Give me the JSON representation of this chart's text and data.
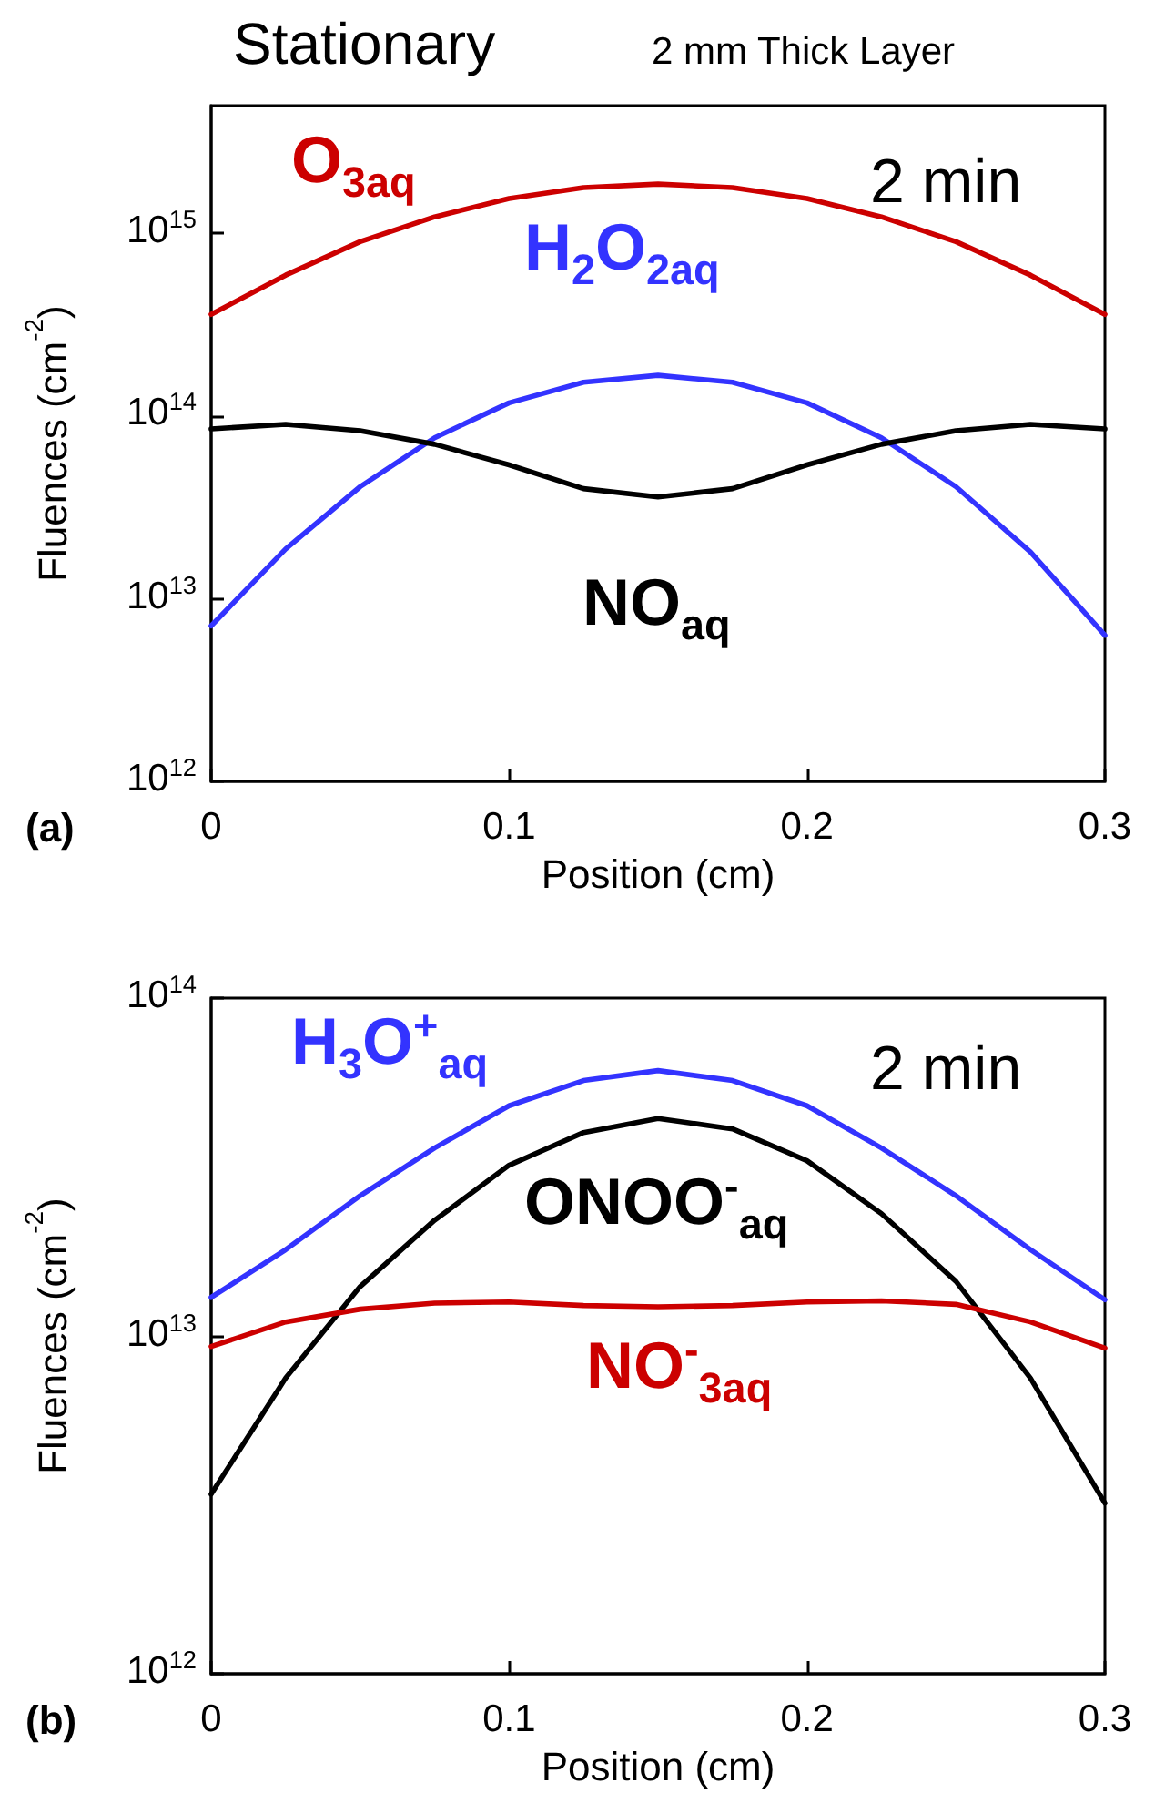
{
  "chart_data": [
    {
      "type": "line",
      "title": "Stationary",
      "subtitle": "2 mm Thick Layer",
      "xlabel": "Position (cm)",
      "ylabel": "Fluences (cm$^{-2}$)",
      "log": "y",
      "marker": "none",
      "annotations": [
        "2 min",
        "(a)"
      ],
      "x": [
        0,
        0.025,
        0.05,
        0.075,
        0.1,
        0.125,
        0.15,
        0.175,
        0.2,
        0.225,
        0.25,
        0.275,
        0.3
      ],
      "xlim": [
        0,
        0.3
      ],
      "xticks": [
        0,
        0.1,
        0.2,
        0.3
      ],
      "ylim": [
        1000000000000.0,
        5000000000000000.0
      ],
      "yticks": [
        {
          "value": 1000000000000.0,
          "label": "10$^{12}$"
        },
        {
          "value": 10000000000000.0,
          "label": "10$^{13}$"
        },
        {
          "value": 100000000000000.0,
          "label": "10$^{14}$"
        },
        {
          "value": 1000000000000000.0,
          "label": "10$^{15}$"
        }
      ],
      "series": [
        {
          "name": "O$_{3aq}$",
          "color": "#cc0000",
          "values": [
            360000000000000.0,
            590000000000000.0,
            900000000000000.0,
            1230000000000000.0,
            1550000000000000.0,
            1780000000000000.0,
            1860000000000000.0,
            1780000000000000.0,
            1550000000000000.0,
            1230000000000000.0,
            900000000000000.0,
            590000000000000.0,
            360000000000000.0
          ]
        },
        {
          "name": "H$_{2}$O$_{2aq}$",
          "color": "#3333ff",
          "values": [
            7100000000000.0,
            18700000000000.0,
            41000000000000.0,
            76000000000000.0,
            118000000000000.0,
            153000000000000.0,
            167000000000000.0,
            153000000000000.0,
            118000000000000.0,
            76000000000000.0,
            41000000000000.0,
            18000000000000.0,
            6300000000000.0
          ]
        },
        {
          "name": "NO$_{aq}$",
          "color": "#000000",
          "values": [
            85000000000000.0,
            90000000000000.0,
            83000000000000.0,
            70000000000000.0,
            54000000000000.0,
            40000000000000.0,
            36000000000000.0,
            40000000000000.0,
            54000000000000.0,
            70000000000000.0,
            83000000000000.0,
            90000000000000.0,
            85000000000000.0
          ]
        }
      ]
    },
    {
      "type": "line",
      "xlabel": "Position (cm)",
      "ylabel": "Fluences (cm$^{-2}$)",
      "log": "y",
      "marker": "none",
      "annotations": [
        "2 min",
        "(b)"
      ],
      "x": [
        0,
        0.025,
        0.05,
        0.075,
        0.1,
        0.125,
        0.15,
        0.175,
        0.2,
        0.225,
        0.25,
        0.275,
        0.3
      ],
      "xlim": [
        0,
        0.3
      ],
      "xticks": [
        0,
        0.1,
        0.2,
        0.3
      ],
      "ylim": [
        1000000000000.0,
        100000000000000.0
      ],
      "yticks": [
        {
          "value": 1000000000000.0,
          "label": "10$^{12}$"
        },
        {
          "value": 10000000000000.0,
          "label": "10$^{13}$"
        },
        {
          "value": 100000000000000.0,
          "label": "10$^{14}$"
        }
      ],
      "series": [
        {
          "name": "H$_{3}$O$^{+}$$_{aq}$",
          "color": "#3333ff",
          "values": [
            13000000000000.0,
            18000000000000.0,
            26000000000000.0,
            36000000000000.0,
            48000000000000.0,
            57000000000000.0,
            61000000000000.0,
            57000000000000.0,
            48000000000000.0,
            36000000000000.0,
            26000000000000.0,
            18000000000000.0,
            12800000000000.0
          ]
        },
        {
          "name": "ONOO$^{-}$$_{aq}$",
          "color": "#000000",
          "values": [
            3400000000000.0,
            7500000000000.0,
            14000000000000.0,
            22000000000000.0,
            32000000000000.0,
            40000000000000.0,
            44000000000000.0,
            41000000000000.0,
            33000000000000.0,
            23000000000000.0,
            14500000000000.0,
            7500000000000.0,
            3200000000000.0
          ]
        },
        {
          "name": "NO$^{-}$$_{3aq}$",
          "color": "#cc0000",
          "values": [
            9300000000000.0,
            11000000000000.0,
            12000000000000.0,
            12500000000000.0,
            12600000000000.0,
            12300000000000.0,
            12200000000000.0,
            12300000000000.0,
            12600000000000.0,
            12700000000000.0,
            12400000000000.0,
            11000000000000.0,
            9200000000000.0
          ]
        }
      ]
    }
  ]
}
